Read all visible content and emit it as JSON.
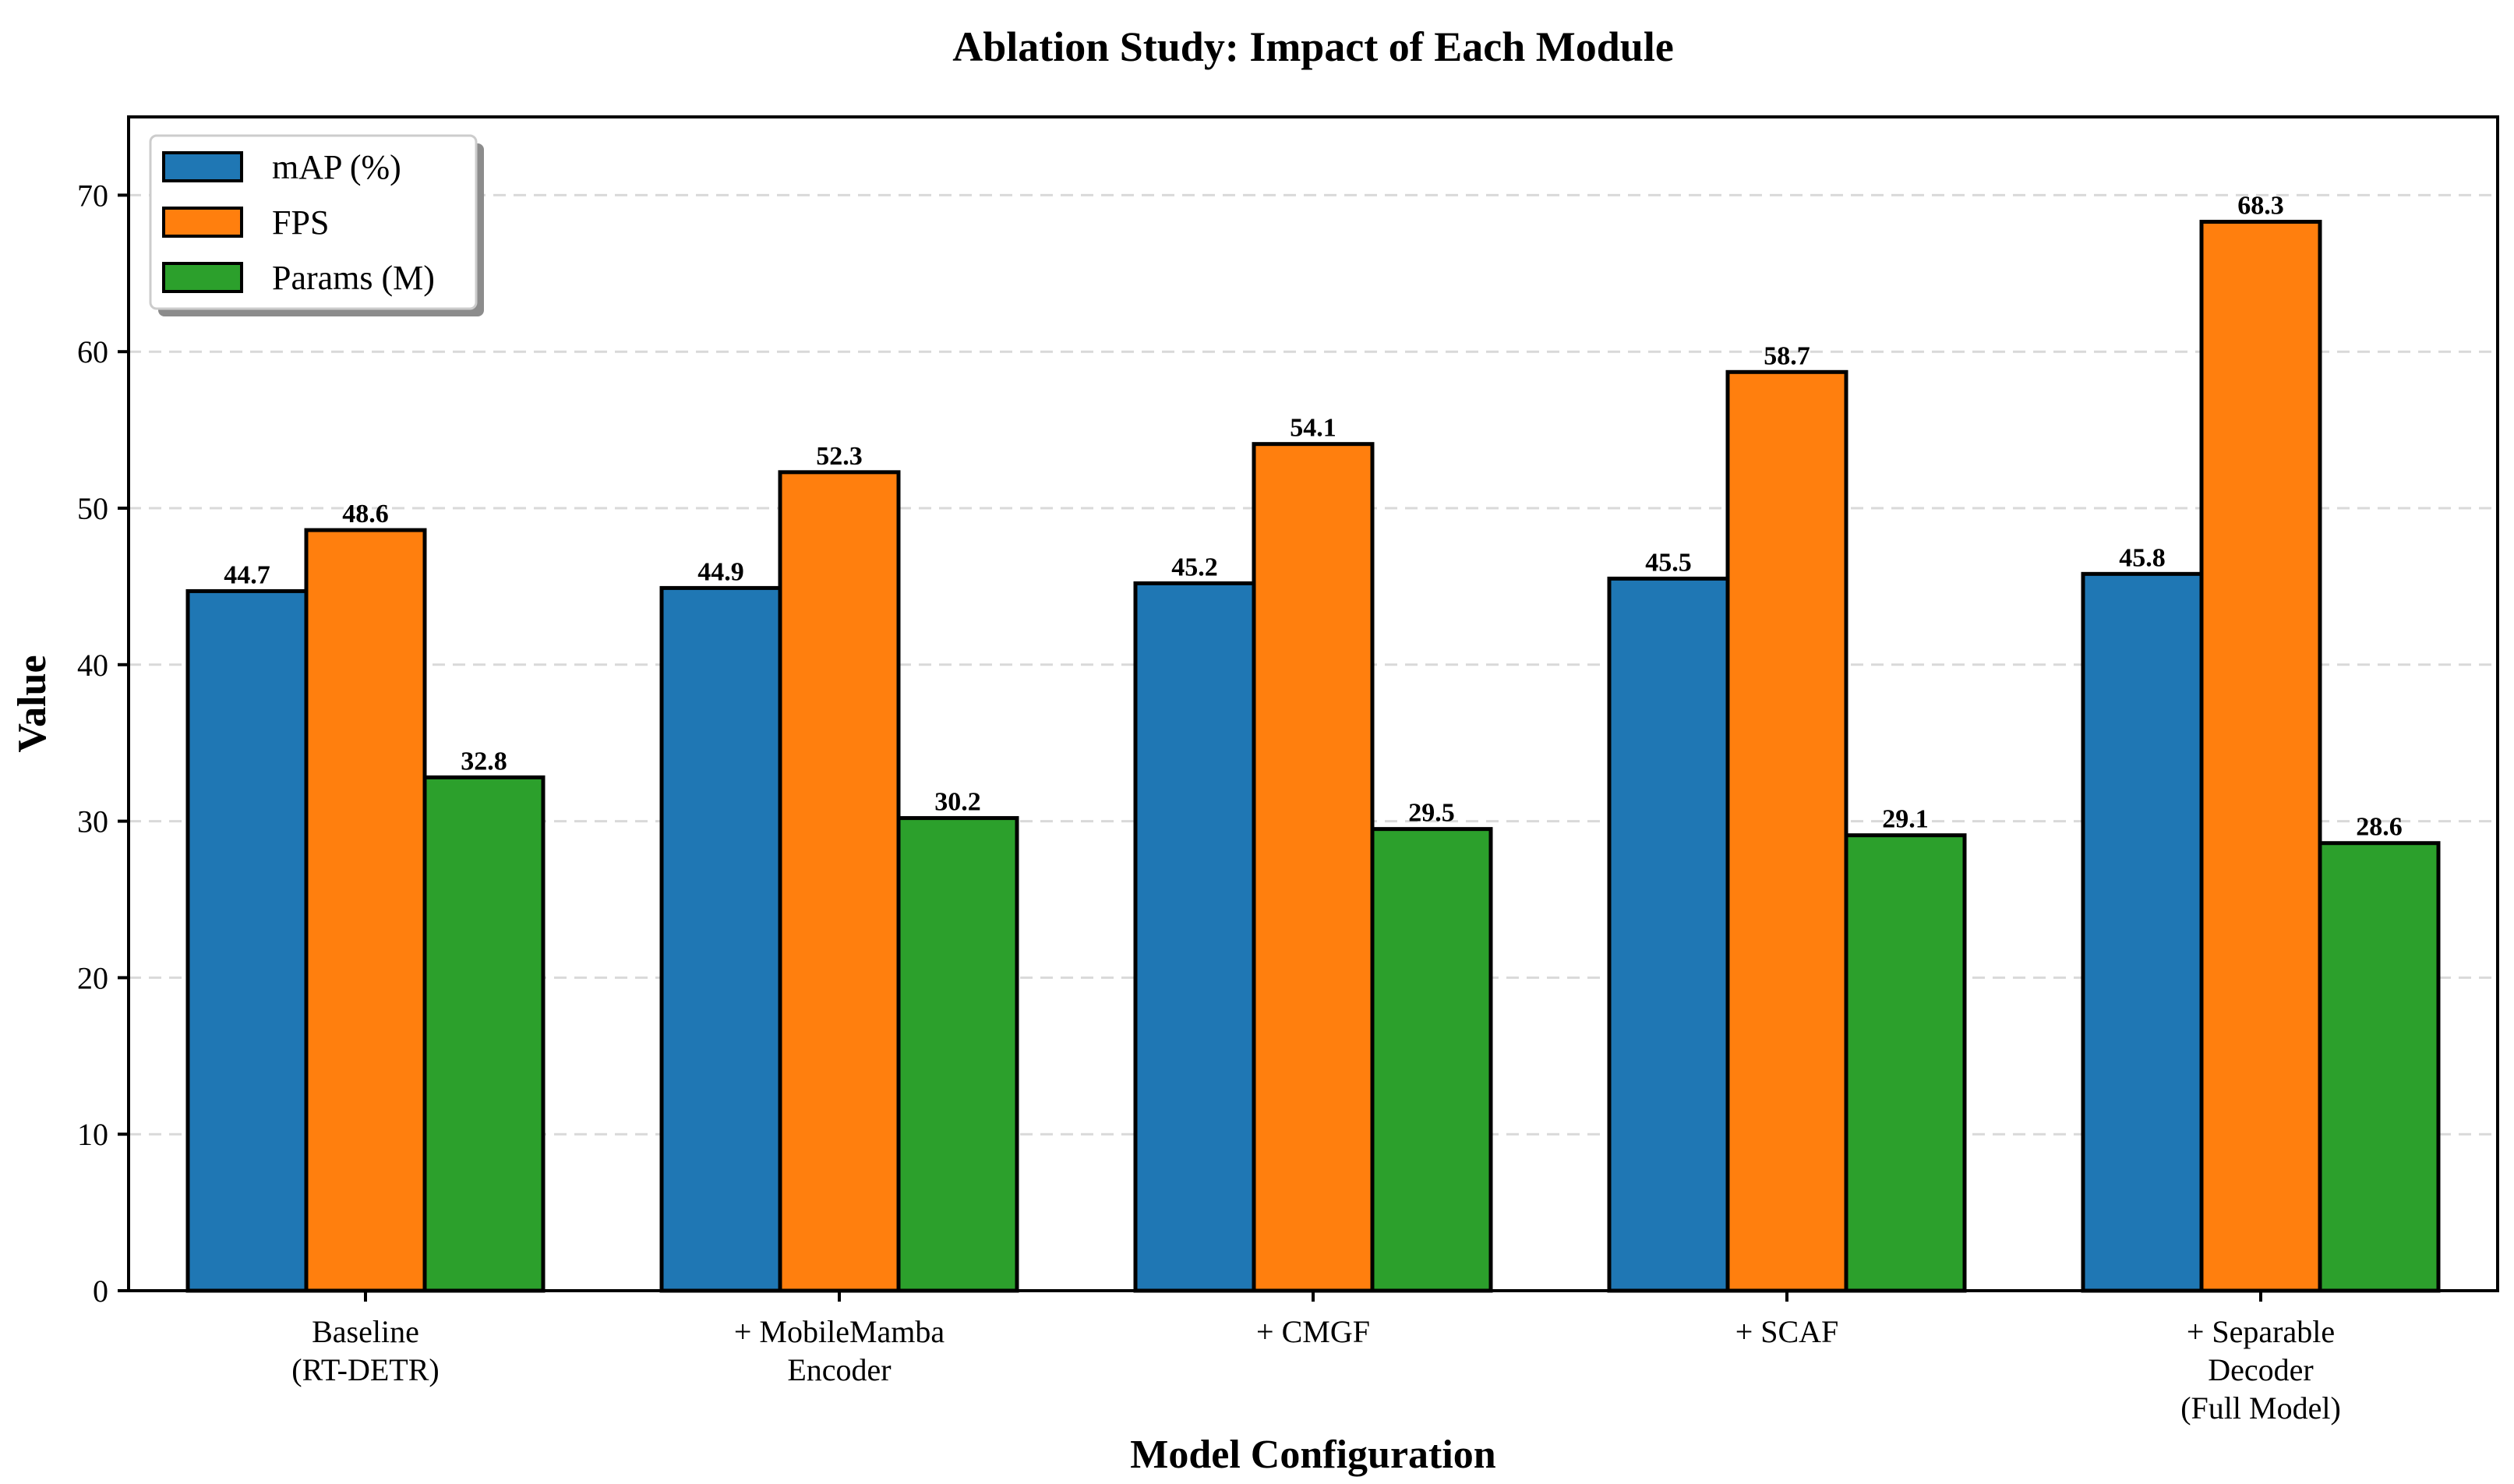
{
  "chart_data": {
    "type": "bar",
    "title": "Ablation Study: Impact of Each Module",
    "xlabel": "Model Configuration",
    "ylabel": "Value",
    "ylim": [
      0,
      75
    ],
    "yticks": [
      0,
      10,
      20,
      30,
      40,
      50,
      60,
      70
    ],
    "grid": true,
    "legend_position": "top-left",
    "categories": [
      [
        "Baseline",
        "(RT-DETR)"
      ],
      [
        "+ MobileMamba",
        "Encoder"
      ],
      [
        "+ CMGF"
      ],
      [
        "+ SCAF"
      ],
      [
        "+ Separable",
        "Decoder",
        "(Full Model)"
      ]
    ],
    "series": [
      {
        "name": "mAP (%)",
        "color": "#1f77b4",
        "values": [
          44.7,
          44.9,
          45.2,
          45.5,
          45.8
        ]
      },
      {
        "name": "FPS",
        "color": "#ff7f0e",
        "values": [
          48.6,
          52.3,
          54.1,
          58.7,
          68.3
        ]
      },
      {
        "name": "Params (M)",
        "color": "#2ca02c",
        "values": [
          32.8,
          30.2,
          29.5,
          29.1,
          28.6
        ]
      }
    ]
  }
}
